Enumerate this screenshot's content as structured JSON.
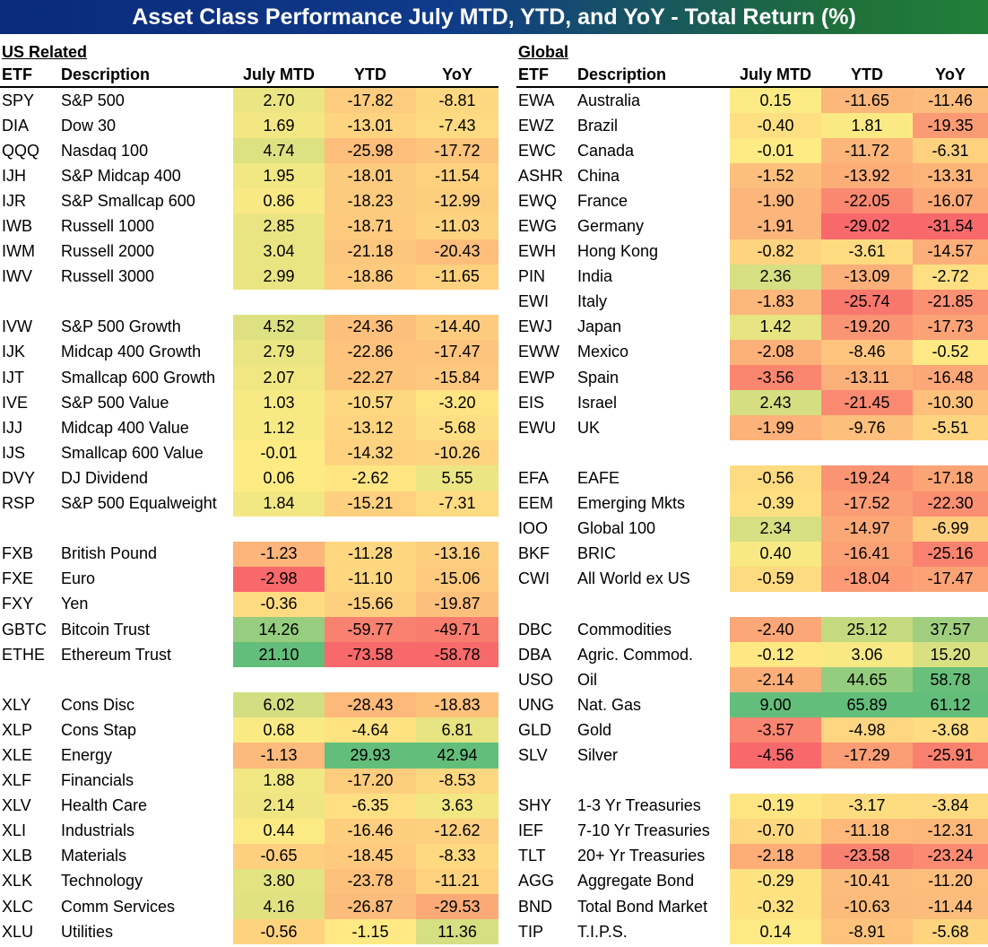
{
  "title": "Asset Class Performance July MTD, YTD, and YoY - Total Return (%)",
  "columns": {
    "etf": "ETF",
    "description": "Description",
    "mtd": "July MTD",
    "ytd": "YTD",
    "yoy": "YoY"
  },
  "us": {
    "section_title": "US Related",
    "rows": [
      {
        "etf": "SPY",
        "desc": "S&P 500",
        "mtd": "2.70",
        "ytd": "-17.82",
        "yoy": "-8.81"
      },
      {
        "etf": "DIA",
        "desc": "Dow 30",
        "mtd": "1.69",
        "ytd": "-13.01",
        "yoy": "-7.43"
      },
      {
        "etf": "QQQ",
        "desc": "Nasdaq 100",
        "mtd": "4.74",
        "ytd": "-25.98",
        "yoy": "-17.72"
      },
      {
        "etf": "IJH",
        "desc": "S&P Midcap 400",
        "mtd": "1.95",
        "ytd": "-18.01",
        "yoy": "-11.54"
      },
      {
        "etf": "IJR",
        "desc": "S&P Smallcap 600",
        "mtd": "0.86",
        "ytd": "-18.23",
        "yoy": "-12.99"
      },
      {
        "etf": "IWB",
        "desc": "Russell 1000",
        "mtd": "2.85",
        "ytd": "-18.71",
        "yoy": "-11.03"
      },
      {
        "etf": "IWM",
        "desc": "Russell 2000",
        "mtd": "3.04",
        "ytd": "-21.18",
        "yoy": "-20.43"
      },
      {
        "etf": "IWV",
        "desc": "Russell 3000",
        "mtd": "2.99",
        "ytd": "-18.86",
        "yoy": "-11.65"
      },
      {
        "blank": true
      },
      {
        "etf": "IVW",
        "desc": "S&P 500 Growth",
        "mtd": "4.52",
        "ytd": "-24.36",
        "yoy": "-14.40"
      },
      {
        "etf": "IJK",
        "desc": "Midcap 400 Growth",
        "mtd": "2.79",
        "ytd": "-22.86",
        "yoy": "-17.47"
      },
      {
        "etf": "IJT",
        "desc": "Smallcap 600 Growth",
        "mtd": "2.07",
        "ytd": "-22.27",
        "yoy": "-15.84"
      },
      {
        "etf": "IVE",
        "desc": "S&P 500 Value",
        "mtd": "1.03",
        "ytd": "-10.57",
        "yoy": "-3.20"
      },
      {
        "etf": "IJJ",
        "desc": "Midcap 400 Value",
        "mtd": "1.12",
        "ytd": "-13.12",
        "yoy": "-5.68"
      },
      {
        "etf": "IJS",
        "desc": "Smallcap 600 Value",
        "mtd": "-0.01",
        "ytd": "-14.32",
        "yoy": "-10.26"
      },
      {
        "etf": "DVY",
        "desc": "DJ Dividend",
        "mtd": "0.06",
        "ytd": "-2.62",
        "yoy": "5.55"
      },
      {
        "etf": "RSP",
        "desc": "S&P 500 Equalweight",
        "mtd": "1.84",
        "ytd": "-15.21",
        "yoy": "-7.31"
      },
      {
        "blank": true
      },
      {
        "etf": "FXB",
        "desc": "British Pound",
        "mtd": "-1.23",
        "ytd": "-11.28",
        "yoy": "-13.16"
      },
      {
        "etf": "FXE",
        "desc": "Euro",
        "mtd": "-2.98",
        "ytd": "-11.10",
        "yoy": "-15.06"
      },
      {
        "etf": "FXY",
        "desc": "Yen",
        "mtd": "-0.36",
        "ytd": "-15.66",
        "yoy": "-19.87"
      },
      {
        "etf": "GBTC",
        "desc": "Bitcoin Trust",
        "mtd": "14.26",
        "ytd": "-59.77",
        "yoy": "-49.71"
      },
      {
        "etf": "ETHE",
        "desc": "Ethereum Trust",
        "mtd": "21.10",
        "ytd": "-73.58",
        "yoy": "-58.78"
      },
      {
        "blank": true
      },
      {
        "etf": "XLY",
        "desc": "Cons Disc",
        "mtd": "6.02",
        "ytd": "-28.43",
        "yoy": "-18.83"
      },
      {
        "etf": "XLP",
        "desc": "Cons Stap",
        "mtd": "0.68",
        "ytd": "-4.64",
        "yoy": "6.81"
      },
      {
        "etf": "XLE",
        "desc": "Energy",
        "mtd": "-1.13",
        "ytd": "29.93",
        "yoy": "42.94"
      },
      {
        "etf": "XLF",
        "desc": "Financials",
        "mtd": "1.88",
        "ytd": "-17.20",
        "yoy": "-8.53"
      },
      {
        "etf": "XLV",
        "desc": "Health Care",
        "mtd": "2.14",
        "ytd": "-6.35",
        "yoy": "3.63"
      },
      {
        "etf": "XLI",
        "desc": "Industrials",
        "mtd": "0.44",
        "ytd": "-16.46",
        "yoy": "-12.62"
      },
      {
        "etf": "XLB",
        "desc": "Materials",
        "mtd": "-0.65",
        "ytd": "-18.45",
        "yoy": "-8.33"
      },
      {
        "etf": "XLK",
        "desc": "Technology",
        "mtd": "3.80",
        "ytd": "-23.78",
        "yoy": "-11.21"
      },
      {
        "etf": "XLC",
        "desc": "Comm Services",
        "mtd": "4.16",
        "ytd": "-26.87",
        "yoy": "-29.53"
      },
      {
        "etf": "XLU",
        "desc": "Utilities",
        "mtd": "-0.56",
        "ytd": "-1.15",
        "yoy": "11.36"
      }
    ]
  },
  "global": {
    "section_title": "Global",
    "rows": [
      {
        "etf": "EWA",
        "desc": "Australia",
        "mtd": "0.15",
        "ytd": "-11.65",
        "yoy": "-11.46"
      },
      {
        "etf": "EWZ",
        "desc": "Brazil",
        "mtd": "-0.40",
        "ytd": "1.81",
        "yoy": "-19.35"
      },
      {
        "etf": "EWC",
        "desc": "Canada",
        "mtd": "-0.01",
        "ytd": "-11.72",
        "yoy": "-6.31"
      },
      {
        "etf": "ASHR",
        "desc": "China",
        "mtd": "-1.52",
        "ytd": "-13.92",
        "yoy": "-13.31"
      },
      {
        "etf": "EWQ",
        "desc": "France",
        "mtd": "-1.90",
        "ytd": "-22.05",
        "yoy": "-16.07"
      },
      {
        "etf": "EWG",
        "desc": "Germany",
        "mtd": "-1.91",
        "ytd": "-29.02",
        "yoy": "-31.54"
      },
      {
        "etf": "EWH",
        "desc": "Hong Kong",
        "mtd": "-0.82",
        "ytd": "-3.61",
        "yoy": "-14.57"
      },
      {
        "etf": "PIN",
        "desc": "India",
        "mtd": "2.36",
        "ytd": "-13.09",
        "yoy": "-2.72"
      },
      {
        "etf": "EWI",
        "desc": "Italy",
        "mtd": "-1.83",
        "ytd": "-25.74",
        "yoy": "-21.85"
      },
      {
        "etf": "EWJ",
        "desc": "Japan",
        "mtd": "1.42",
        "ytd": "-19.20",
        "yoy": "-17.73"
      },
      {
        "etf": "EWW",
        "desc": "Mexico",
        "mtd": "-2.08",
        "ytd": "-8.46",
        "yoy": "-0.52"
      },
      {
        "etf": "EWP",
        "desc": "Spain",
        "mtd": "-3.56",
        "ytd": "-13.11",
        "yoy": "-16.48"
      },
      {
        "etf": "EIS",
        "desc": "Israel",
        "mtd": "2.43",
        "ytd": "-21.45",
        "yoy": "-10.30"
      },
      {
        "etf": "EWU",
        "desc": "UK",
        "mtd": "-1.99",
        "ytd": "-9.76",
        "yoy": "-5.51"
      },
      {
        "blank": true
      },
      {
        "etf": "EFA",
        "desc": "EAFE",
        "mtd": "-0.56",
        "ytd": "-19.24",
        "yoy": "-17.18"
      },
      {
        "etf": "EEM",
        "desc": "Emerging Mkts",
        "mtd": "-0.39",
        "ytd": "-17.52",
        "yoy": "-22.30"
      },
      {
        "etf": "IOO",
        "desc": "Global 100",
        "mtd": "2.34",
        "ytd": "-14.97",
        "yoy": "-6.99"
      },
      {
        "etf": "BKF",
        "desc": "BRIC",
        "mtd": "0.40",
        "ytd": "-16.41",
        "yoy": "-25.16"
      },
      {
        "etf": "CWI",
        "desc": "All World ex US",
        "mtd": "-0.59",
        "ytd": "-18.04",
        "yoy": "-17.47"
      },
      {
        "blank": true
      },
      {
        "etf": "DBC",
        "desc": "Commodities",
        "mtd": "-2.40",
        "ytd": "25.12",
        "yoy": "37.57"
      },
      {
        "etf": "DBA",
        "desc": "Agric. Commod.",
        "mtd": "-0.12",
        "ytd": "3.06",
        "yoy": "15.20"
      },
      {
        "etf": "USO",
        "desc": "Oil",
        "mtd": "-2.14",
        "ytd": "44.65",
        "yoy": "58.78"
      },
      {
        "etf": "UNG",
        "desc": "Nat. Gas",
        "mtd": "9.00",
        "ytd": "65.89",
        "yoy": "61.12"
      },
      {
        "etf": "GLD",
        "desc": "Gold",
        "mtd": "-3.57",
        "ytd": "-4.98",
        "yoy": "-3.68"
      },
      {
        "etf": "SLV",
        "desc": "Silver",
        "mtd": "-4.56",
        "ytd": "-17.29",
        "yoy": "-25.91"
      },
      {
        "blank": true
      },
      {
        "etf": "SHY",
        "desc": "1-3 Yr Treasuries",
        "mtd": "-0.19",
        "ytd": "-3.17",
        "yoy": "-3.84"
      },
      {
        "etf": "IEF",
        "desc": "7-10 Yr Treasuries",
        "mtd": "-0.70",
        "ytd": "-11.18",
        "yoy": "-12.31"
      },
      {
        "etf": "TLT",
        "desc": "20+ Yr Treasuries",
        "mtd": "-2.18",
        "ytd": "-23.58",
        "yoy": "-23.24"
      },
      {
        "etf": "AGG",
        "desc": "Aggregate Bond",
        "mtd": "-0.29",
        "ytd": "-10.41",
        "yoy": "-11.20"
      },
      {
        "etf": "BND",
        "desc": "Total Bond Market",
        "mtd": "-0.32",
        "ytd": "-10.63",
        "yoy": "-11.44"
      },
      {
        "etf": "TIP",
        "desc": "T.I.P.S.",
        "mtd": "0.14",
        "ytd": "-8.91",
        "yoy": "-5.68"
      }
    ]
  },
  "heat_colors": {
    "negative": "#f8696b",
    "neutral": "#ffeb84",
    "positive": "#63be7b"
  }
}
